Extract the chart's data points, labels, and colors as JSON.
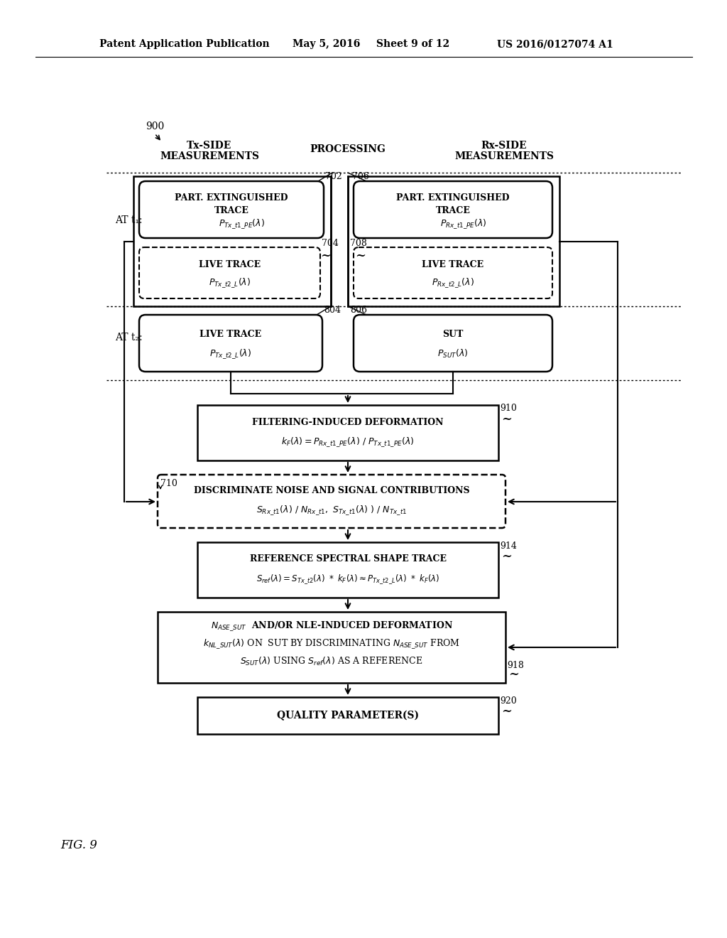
{
  "bg_color": "#ffffff",
  "header_text": "Patent Application Publication",
  "header_date": "May 5, 2016",
  "header_sheet": "Sheet 9 of 12",
  "header_patent": "US 2016/0127074 A1",
  "fig_label": "FIG. 9",
  "fig_number": "900"
}
